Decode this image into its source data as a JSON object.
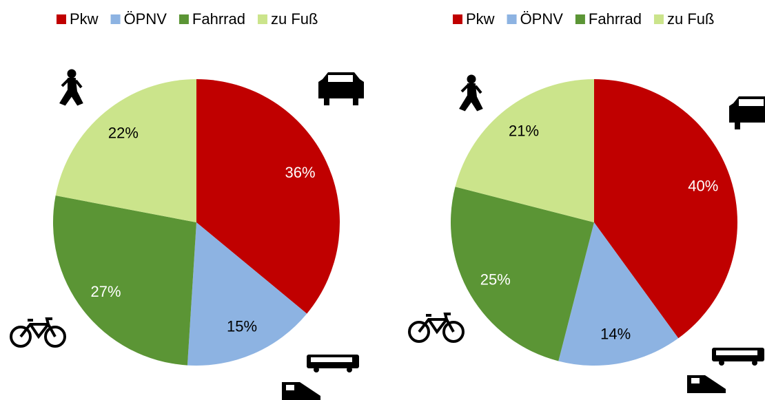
{
  "chart_data": [
    {
      "type": "pie",
      "categories": [
        "Pkw",
        "ÖPNV",
        "Fahrrad",
        "zu Fuß"
      ],
      "values": [
        36,
        15,
        27,
        22
      ],
      "value_labels": [
        "36%",
        "15%",
        "27%",
        "22%"
      ],
      "colors": [
        "#c00000",
        "#8db3e2",
        "#5b9535",
        "#cbe48b"
      ],
      "legend": "top"
    },
    {
      "type": "pie",
      "categories": [
        "Pkw",
        "ÖPNV",
        "Fahrrad",
        "zu Fuß"
      ],
      "values": [
        40,
        14,
        25,
        21
      ],
      "value_labels": [
        "40%",
        "14%",
        "25%",
        "21%"
      ],
      "colors": [
        "#c00000",
        "#8db3e2",
        "#5b9535",
        "#cbe48b"
      ],
      "legend": "top"
    }
  ]
}
